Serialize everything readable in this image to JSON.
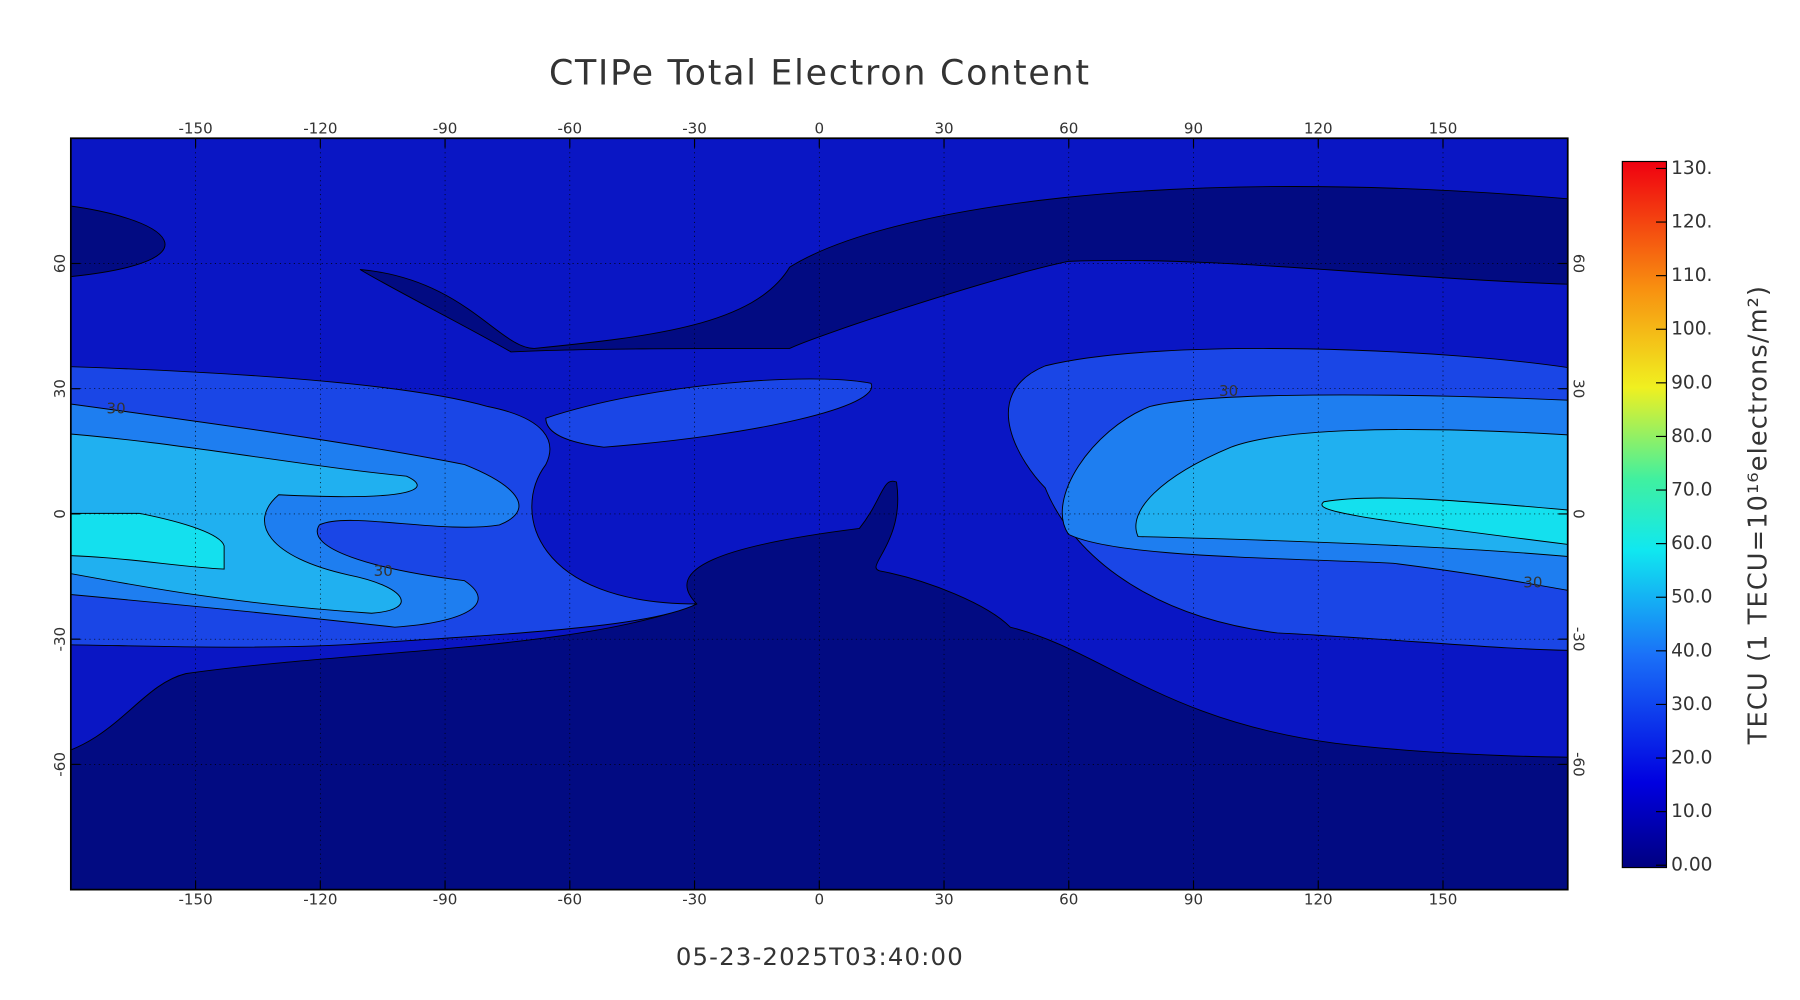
{
  "chart_data": {
    "type": "contour-map",
    "title": "CTIPe Total Electron Content",
    "timestamp": "05-23-2025T03:40:00",
    "xlim": [
      -180,
      180
    ],
    "xticks": [
      -150,
      -120,
      -90,
      -60,
      -30,
      0,
      30,
      60,
      90,
      120,
      150
    ],
    "ylim": [
      -90,
      90
    ],
    "yticks": [
      -60,
      -30,
      0,
      30,
      60
    ],
    "grid": true,
    "contour_labels": [
      30,
      30,
      30,
      30
    ],
    "colorbar": {
      "label": "TECU  (1 TECU=10¹⁶electrons/m²)",
      "lim": [
        0,
        130
      ],
      "ticks": [
        {
          "value": 0,
          "label": "0.00"
        },
        {
          "value": 10,
          "label": "10.0"
        },
        {
          "value": 20,
          "label": "20.0"
        },
        {
          "value": 30,
          "label": "30.0"
        },
        {
          "value": 40,
          "label": "40.0"
        },
        {
          "value": 50,
          "label": "50.0"
        },
        {
          "value": 60,
          "label": "60.0"
        },
        {
          "value": 70,
          "label": "70.0"
        },
        {
          "value": 80,
          "label": "80.0"
        },
        {
          "value": 90,
          "label": "90.0"
        },
        {
          "value": 100,
          "label": "100."
        },
        {
          "value": 110,
          "label": "110."
        },
        {
          "value": 120,
          "label": "120."
        },
        {
          "value": 130,
          "label": "130."
        }
      ]
    }
  }
}
